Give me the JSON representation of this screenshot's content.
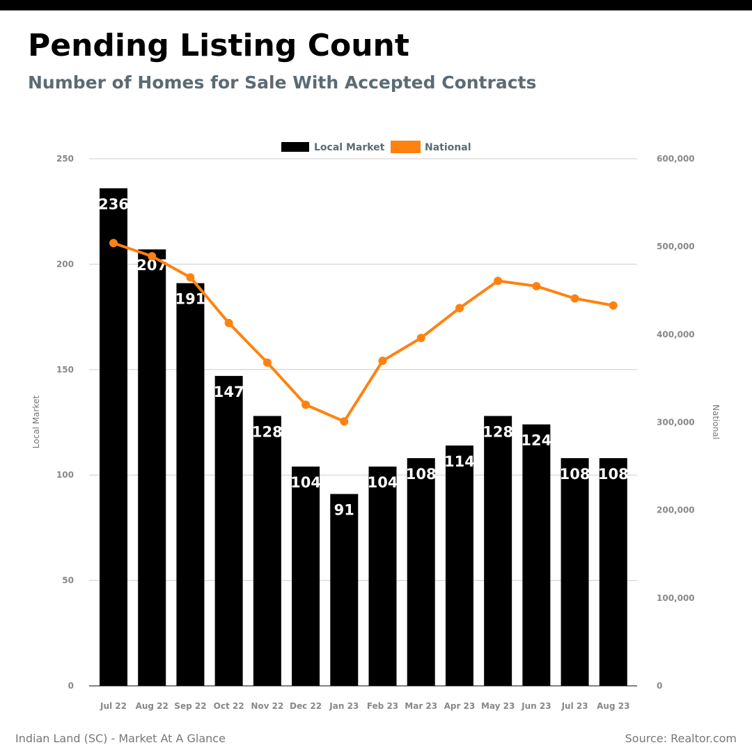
{
  "header": {
    "title": "Pending Listing Count",
    "subtitle": "Number of Homes for Sale With Accepted Contracts"
  },
  "footer": {
    "left": "Indian Land (SC) - Market At A Glance",
    "right": "Source: Realtor.com"
  },
  "colors": {
    "local_bar": "#000000",
    "national_line": "#ff8210",
    "grid": "#cccccc"
  },
  "chart_data": {
    "type": "bar",
    "title": "",
    "categories": [
      "Jul 22",
      "Aug 22",
      "Sep 22",
      "Oct 22",
      "Nov 22",
      "Dec 22",
      "Jan 23",
      "Feb 23",
      "Mar 23",
      "Apr 23",
      "May 23",
      "Jun 23",
      "Jul 23",
      "Aug 23"
    ],
    "series": [
      {
        "name": "Local Market",
        "type": "bar",
        "axis": "left",
        "color": "#000000",
        "values": [
          236,
          207,
          191,
          147,
          128,
          104,
          91,
          104,
          108,
          114,
          128,
          124,
          108,
          108
        ],
        "data_labels": true
      },
      {
        "name": "National",
        "type": "line",
        "axis": "right",
        "color": "#ff8210",
        "values": [
          504000,
          489000,
          465000,
          413000,
          368000,
          320000,
          301000,
          370000,
          396000,
          430000,
          461000,
          455000,
          441000,
          433000
        ]
      }
    ],
    "ylabel_left": "Local Market",
    "ylabel_right": "National",
    "ylim_left": [
      0,
      250
    ],
    "ylim_right": [
      0,
      600000
    ],
    "yticks_left": [
      "0",
      "50",
      "100",
      "150",
      "200",
      "250"
    ],
    "yticks_right": [
      "0",
      "100,000",
      "200,000",
      "300,000",
      "400,000",
      "500,000",
      "600,000"
    ],
    "grid": true,
    "legend": "top-center"
  }
}
